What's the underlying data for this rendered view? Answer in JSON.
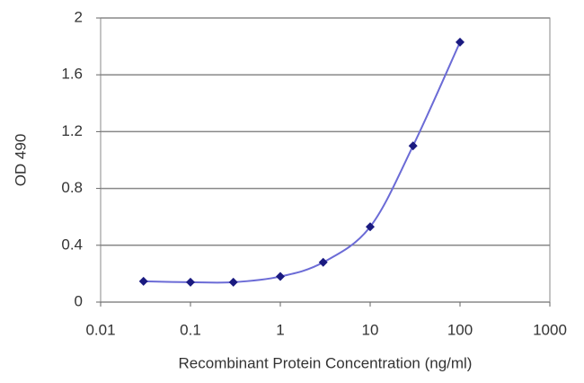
{
  "chart_data": {
    "type": "line",
    "y_label": "OD 490",
    "x_label": "Recombinant Protein Concentration (ng/ml)",
    "x": [
      0.03,
      0.1,
      0.3,
      1,
      3,
      10,
      30,
      100
    ],
    "series": [
      {
        "color": "#6b6bd6",
        "marker_color": "#1a1a80",
        "values": [
          0.146,
          0.14,
          0.14,
          0.18,
          0.28,
          0.53,
          1.1,
          1.83
        ]
      }
    ],
    "xscale": "log",
    "xlim": [
      0.01,
      1000
    ],
    "xticks": [
      0.01,
      0.1,
      1,
      10,
      100,
      1000
    ],
    "ylim": [
      0,
      2
    ],
    "yticks": [
      0,
      0.4,
      0.8,
      1.2,
      1.6,
      2
    ],
    "grid": true
  }
}
